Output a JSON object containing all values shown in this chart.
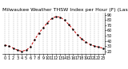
{
  "title": "Milwaukee Weather THSW Index per Hour (F) (Last 24 Hours)",
  "hours": [
    0,
    1,
    2,
    3,
    4,
    5,
    6,
    7,
    8,
    9,
    10,
    11,
    12,
    13,
    14,
    15,
    16,
    17,
    18,
    19,
    20,
    21,
    22,
    23
  ],
  "values": [
    32,
    30,
    26,
    22,
    20,
    22,
    28,
    42,
    55,
    65,
    75,
    83,
    87,
    86,
    80,
    72,
    62,
    52,
    44,
    38,
    33,
    30,
    28,
    26
  ],
  "line_color": "#cc0000",
  "dot_color": "#000000",
  "bg_color": "#ffffff",
  "plot_bg": "#ffffff",
  "grid_color": "#888888",
  "ylim": [
    15,
    95
  ],
  "ytick_values": [
    20,
    30,
    40,
    50,
    60,
    70,
    80,
    90
  ],
  "ytick_labels": [
    "20",
    "30",
    "40",
    "50",
    "60",
    "70",
    "80",
    "90"
  ],
  "title_fontsize": 4.5,
  "tick_fontsize": 3.5,
  "line_width": 0.7,
  "marker_size": 1.5
}
